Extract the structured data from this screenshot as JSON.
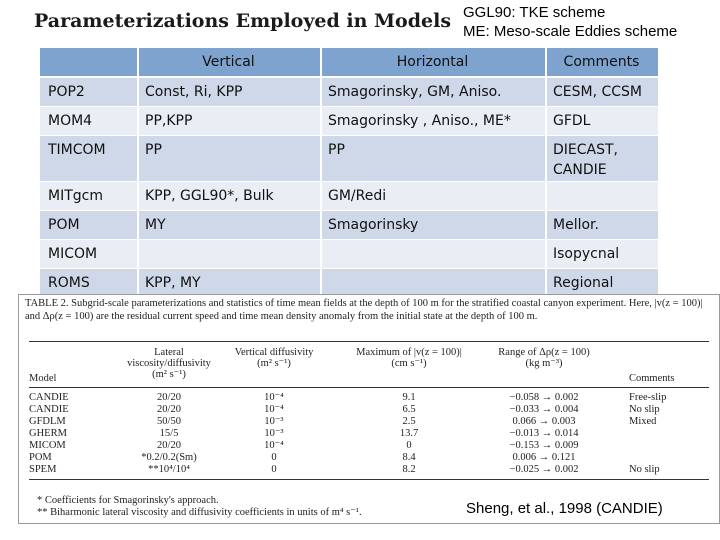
{
  "title": "Parameterizations Employed in Models",
  "notes": [
    "GGL90: TKE scheme",
    "ME: Meso-scale Eddies scheme"
  ],
  "table": {
    "header": [
      "Vertical",
      "Horizontal",
      "Comments"
    ],
    "rows": [
      [
        "POP2",
        "Const, Ri, KPP",
        "Smagorinsky, GM, Aniso.",
        "CESM, CCSM"
      ],
      [
        "MOM4",
        "PP,KPP",
        "Smagorinsky , Aniso., ME*",
        "GFDL"
      ],
      [
        "TIMCOM",
        "PP",
        "PP",
        "DIECAST, CANDIE"
      ],
      [
        "MITgcm",
        "KPP, GGL90*, Bulk",
        "GM/Redi",
        null
      ],
      [
        "POM",
        "MY",
        "Smagorinsky",
        "Mellor."
      ],
      [
        "MICOM",
        null,
        null,
        "Isopycnal"
      ],
      [
        "ROMS",
        "KPP, MY",
        null,
        "Regional Model"
      ]
    ]
  },
  "inset": {
    "caption": "TABLE 2. Subgrid-scale parameterizations and statistics of time mean fields at the depth of 100 m for the stratified coastal canyon experiment. Here, |v(z = 100)| and Δρ(z = 100) are the residual current speed and time mean density anomaly from the initial state at the depth of 100 m.",
    "header": [
      "Model",
      "Lateral\nviscosity/diffusivity\n(m² s⁻¹)",
      "Vertical diffusivity\n(m² s⁻¹)",
      "Maximum of |v(z = 100)|\n(cm s⁻¹)",
      "Range of Δρ(z = 100)\n(kg m⁻³)",
      "Comments"
    ],
    "rows": [
      [
        "CANDIE",
        "20/20",
        "10⁻⁴",
        "9.1",
        "−0.058 → 0.002",
        "Free-slip"
      ],
      [
        "CANDIE",
        "20/20",
        "10⁻⁴",
        "6.5",
        "−0.033 → 0.004",
        "No slip"
      ],
      [
        "GFDLM",
        "50/50",
        "10⁻³",
        "2.5",
        "0.066 → 0.003",
        "Mixed"
      ],
      [
        "GHERM",
        "15/5",
        "10⁻³",
        "13.7",
        "−0.013 → 0.014",
        null
      ],
      [
        "MICOM",
        "20/20",
        "10⁻⁴",
        "0",
        "−0.153 → 0.009",
        null
      ],
      [
        "POM",
        "*0.2/0.2(Sm)",
        "0",
        "8.4",
        "0.006 → 0.121",
        null
      ],
      [
        "SPEM",
        "**10⁴/10⁴",
        "0",
        "8.2",
        "−0.025 → 0.002",
        "No slip"
      ]
    ],
    "footnotes": [
      "* Coefficients for Smagorinsky's approach.",
      "** Biharmonic lateral viscosity and diffusivity coefficients in units of m⁴ s⁻¹."
    ]
  },
  "credit": "Sheng, et al., 1998 (CANDIE)"
}
